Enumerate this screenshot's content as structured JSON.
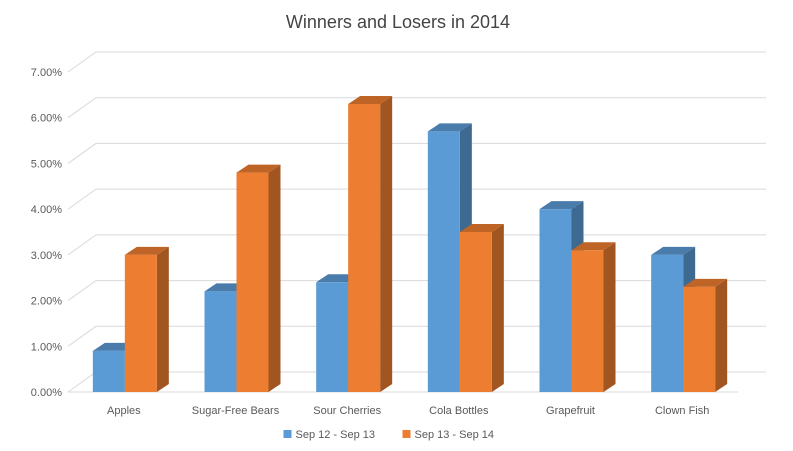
{
  "chart_data": {
    "type": "bar",
    "title": "Winners and Losers in 2014",
    "xlabel": "",
    "ylabel": "",
    "categories": [
      "Apples",
      "Sugar-Free Bears",
      "Sour Cherries",
      "Cola Bottles",
      "Grapefruit",
      "Clown Fish"
    ],
    "series": [
      {
        "name": "Sep 12 - Sep 13",
        "values": [
          0.009,
          0.022,
          0.024,
          0.057,
          0.04,
          0.03
        ],
        "color": "#5b9bd5"
      },
      {
        "name": "Sep 13 - Sep 14",
        "values": [
          0.03,
          0.048,
          0.063,
          0.035,
          0.031,
          0.023
        ],
        "color": "#ed7d31"
      }
    ],
    "ylim": [
      0,
      0.07
    ],
    "yticks": [
      "0.00%",
      "1.00%",
      "2.00%",
      "3.00%",
      "4.00%",
      "5.00%",
      "6.00%",
      "7.00%"
    ],
    "grid": true,
    "style": "3d-clustered-column",
    "legend_position": "bottom"
  }
}
